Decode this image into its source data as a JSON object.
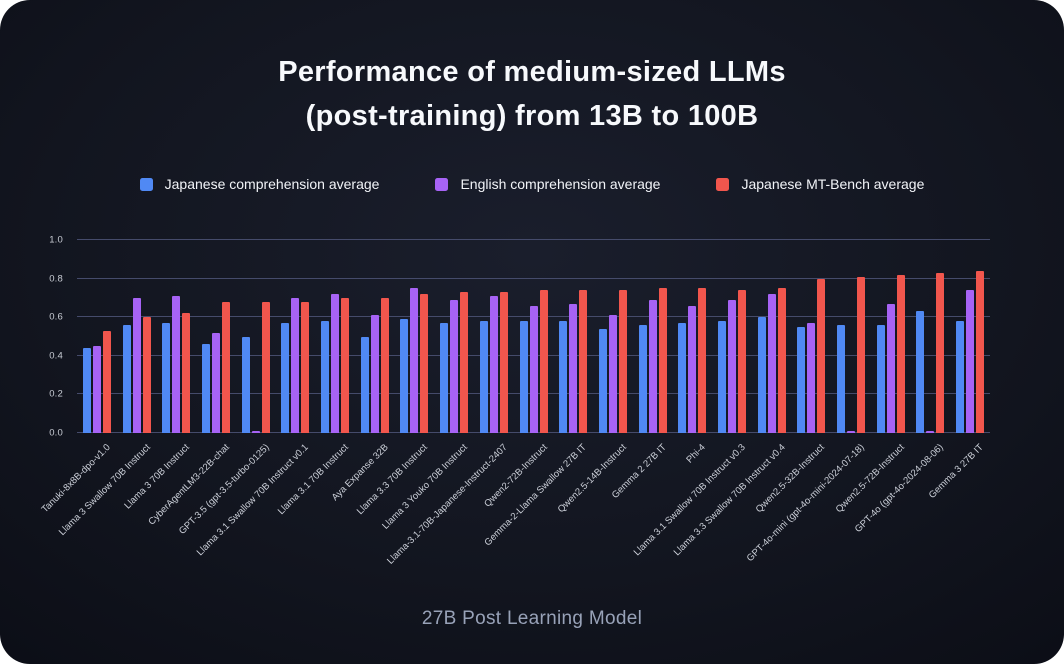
{
  "title": {
    "line1": "Performance of medium-sized LLMs",
    "line2": "(post-training) from 13B to 100B"
  },
  "caption": "27B Post Learning Model",
  "colors": {
    "page_background": "#ffffff",
    "card_center": "#1a1e2c",
    "card_edge": "#0a0c14",
    "gridline": "#454b6b",
    "axis_text": "#c9cdd5",
    "title_text": "#f7f9fc",
    "caption_text": "#98a2b8",
    "series_blue": "#5089f4",
    "series_purple": "#a763f5",
    "series_red": "#f1564d"
  },
  "chart_data": {
    "type": "bar",
    "title": "Performance of medium-sized LLMs (post-training) from 13B to 100B",
    "xlabel": "27B Post Learning Model",
    "ylabel": "",
    "ylim": [
      0,
      1.0
    ],
    "yticks": [
      0.0,
      0.2,
      0.4,
      0.6,
      0.8,
      1.0
    ],
    "grid": true,
    "legend_position": "top-center",
    "categories": [
      "Tanuki-8x8B-dpo-v1.0",
      "Llama 3 Swallow 70B Instruct",
      "Llama 3 70B Instruct",
      "CyberAgentLM3-22B-chat",
      "GPT-3.5 (gpt-3.5-turbo-0125)",
      "Llama 3.1 Swallow 70B Instruct v0.1",
      "Llama 3.1 70B Instruct",
      "Aya Expanse 32B",
      "Llama 3.3 70B Instruct",
      "Llama 3 Youko 70B Instruct",
      "Llama-3.1-70B-Japanese-Instruct-2407",
      "Qwen2-72B-Instruct",
      "Gemma-2-Llama Swallow 27B IT",
      "Qwen2.5-14B-Instruct",
      "Gemma 2 27B IT",
      "Phi-4",
      "Llama 3.1 Swallow 70B Instruct v0.3",
      "Llama 3.3 Swallow 70B Instruct v0.4",
      "Qwen2.5-32B-Instruct",
      "GPT-4o-mini (gpt-4o-mini-2024-07-18)",
      "Qwen2.5-72B-Instruct",
      "GPT-4o (gpt-4o-2024-08-06)",
      "Gemma 3 27B IT"
    ],
    "series": [
      {
        "name": "Japanese comprehension average",
        "color": "#5089f4",
        "values": [
          0.44,
          0.56,
          0.57,
          0.46,
          0.5,
          0.57,
          0.58,
          0.5,
          0.59,
          0.57,
          0.58,
          0.58,
          0.58,
          0.54,
          0.56,
          0.57,
          0.58,
          0.6,
          0.55,
          0.56,
          0.56,
          0.63,
          0.58
        ]
      },
      {
        "name": "English comprehension average",
        "color": "#a763f5",
        "values": [
          0.45,
          0.7,
          0.71,
          0.52,
          0.01,
          0.7,
          0.72,
          0.61,
          0.75,
          0.69,
          0.71,
          0.66,
          0.67,
          0.61,
          0.69,
          0.66,
          0.69,
          0.72,
          0.57,
          0.01,
          0.67,
          0.01,
          0.74
        ]
      },
      {
        "name": "Japanese MT-Bench average",
        "color": "#f1564d",
        "values": [
          0.53,
          0.6,
          0.62,
          0.68,
          0.68,
          0.68,
          0.7,
          0.7,
          0.72,
          0.73,
          0.73,
          0.74,
          0.74,
          0.74,
          0.75,
          0.75,
          0.74,
          0.75,
          0.8,
          0.81,
          0.82,
          0.83,
          0.84
        ]
      }
    ]
  }
}
